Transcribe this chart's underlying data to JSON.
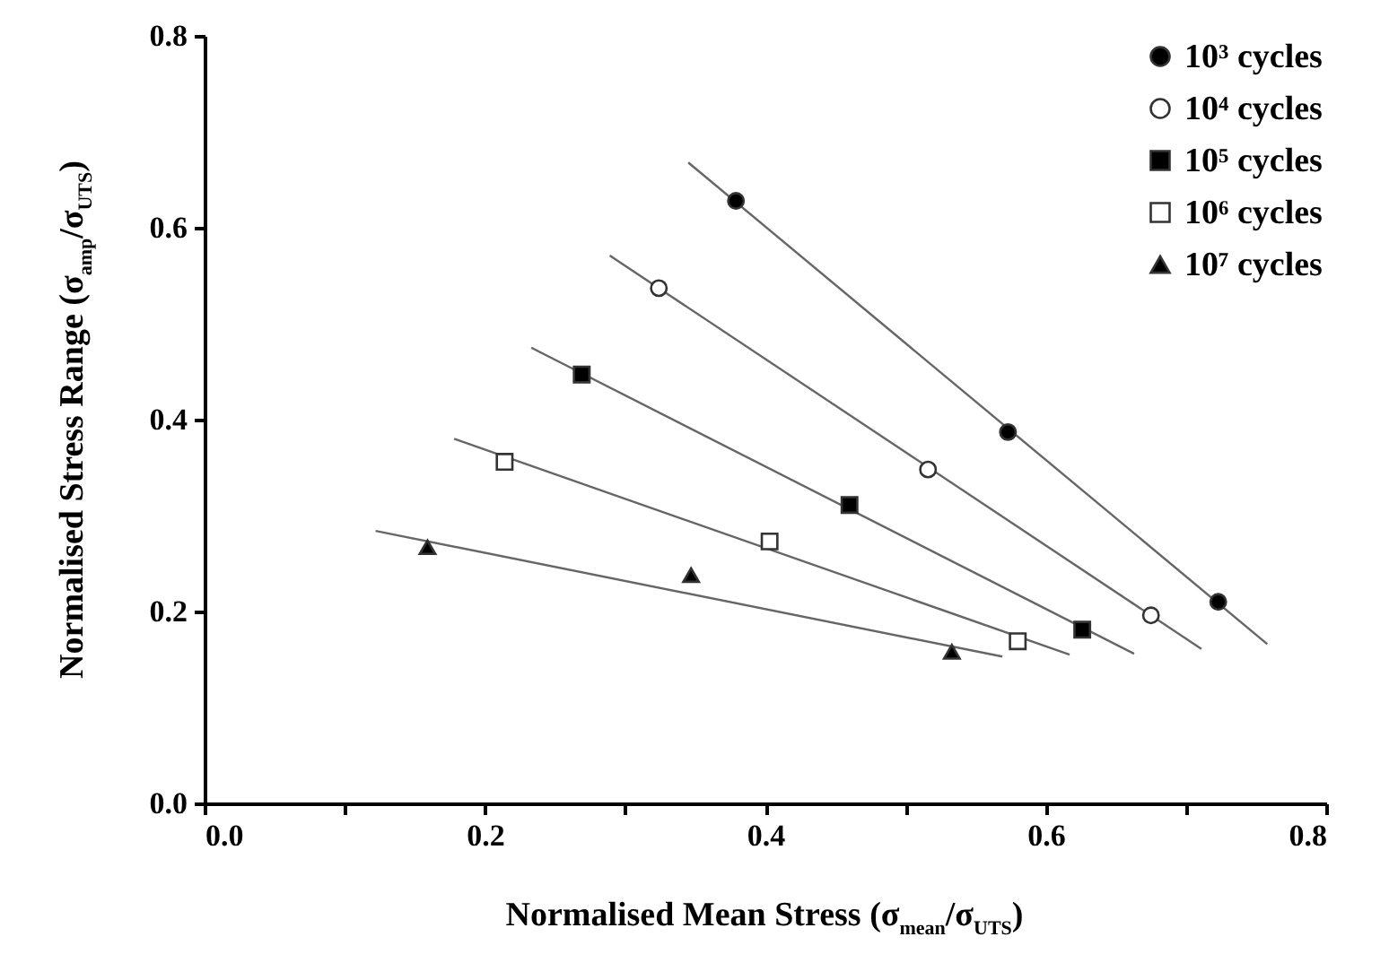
{
  "chart_data": {
    "type": "scatter",
    "xlabel": "Normalised Mean Stress (σ$_{mean}$/σ$_{UTS}$)",
    "ylabel": "Normalised Stress Range (σ$_{amp}$/σ$_{UTS}$)",
    "xlim": [
      0,
      0.8
    ],
    "ylim": [
      0,
      0.8
    ],
    "xticks": [
      {
        "value": 0,
        "label": "0.0"
      },
      {
        "value": 0.1,
        "label": null
      },
      0.2,
      {
        "value": 0.3,
        "label": null
      },
      0.4,
      {
        "value": 0.5,
        "label": null
      },
      0.6,
      {
        "value": 0.7,
        "label": null
      },
      0.8
    ],
    "yticks": [
      {
        "value": 0,
        "label": "0.0"
      },
      0.2,
      0.4,
      0.6,
      0.8
    ],
    "grid": false,
    "legend": "top right",
    "series": [
      {
        "name": "10³ cycles",
        "marker": "circle",
        "color": "#000000",
        "x": [
          0.379,
          0.573,
          0.723
        ],
        "values": [
          0.628,
          0.387,
          0.21
        ]
      },
      {
        "name": "10⁴ cycles",
        "marker": "circle",
        "color": "#ffffff",
        "x": [
          0.324,
          0.516,
          0.675
        ],
        "values": [
          0.537,
          0.348,
          0.196
        ]
      },
      {
        "name": "10⁵ cycles",
        "marker": "square",
        "color": "#000000",
        "x": [
          0.269,
          0.46,
          0.626
        ],
        "values": [
          0.447,
          0.311,
          0.181
        ]
      },
      {
        "name": "10⁶ cycles",
        "marker": "square",
        "color": "#ffffff",
        "x": [
          0.214,
          0.403,
          0.58
        ],
        "values": [
          0.356,
          0.273,
          0.169
        ]
      },
      {
        "name": "10⁷ cycles",
        "marker": "triangle",
        "color": "#000000",
        "x": [
          0.159,
          0.347,
          0.533
        ],
        "values": [
          0.267,
          0.238,
          0.158
        ]
      },
      {
        "type": "line",
        "color": "#666666",
        "x": [
          0.345,
          0.758
        ],
        "values": [
          0.668,
          0.166
        ]
      },
      {
        "type": "line",
        "color": "#666666",
        "x": [
          0.289,
          0.711
        ],
        "values": [
          0.571,
          0.161
        ]
      },
      {
        "type": "line",
        "color": "#666666",
        "x": [
          0.233,
          0.663
        ],
        "values": [
          0.475,
          0.156
        ]
      },
      {
        "type": "line",
        "color": "#666666",
        "x": [
          0.178,
          0.617
        ],
        "values": [
          0.38,
          0.155
        ]
      },
      {
        "type": "line",
        "color": "#666666",
        "x": [
          0.122,
          0.569
        ],
        "values": [
          0.284,
          0.153
        ]
      }
    ]
  }
}
